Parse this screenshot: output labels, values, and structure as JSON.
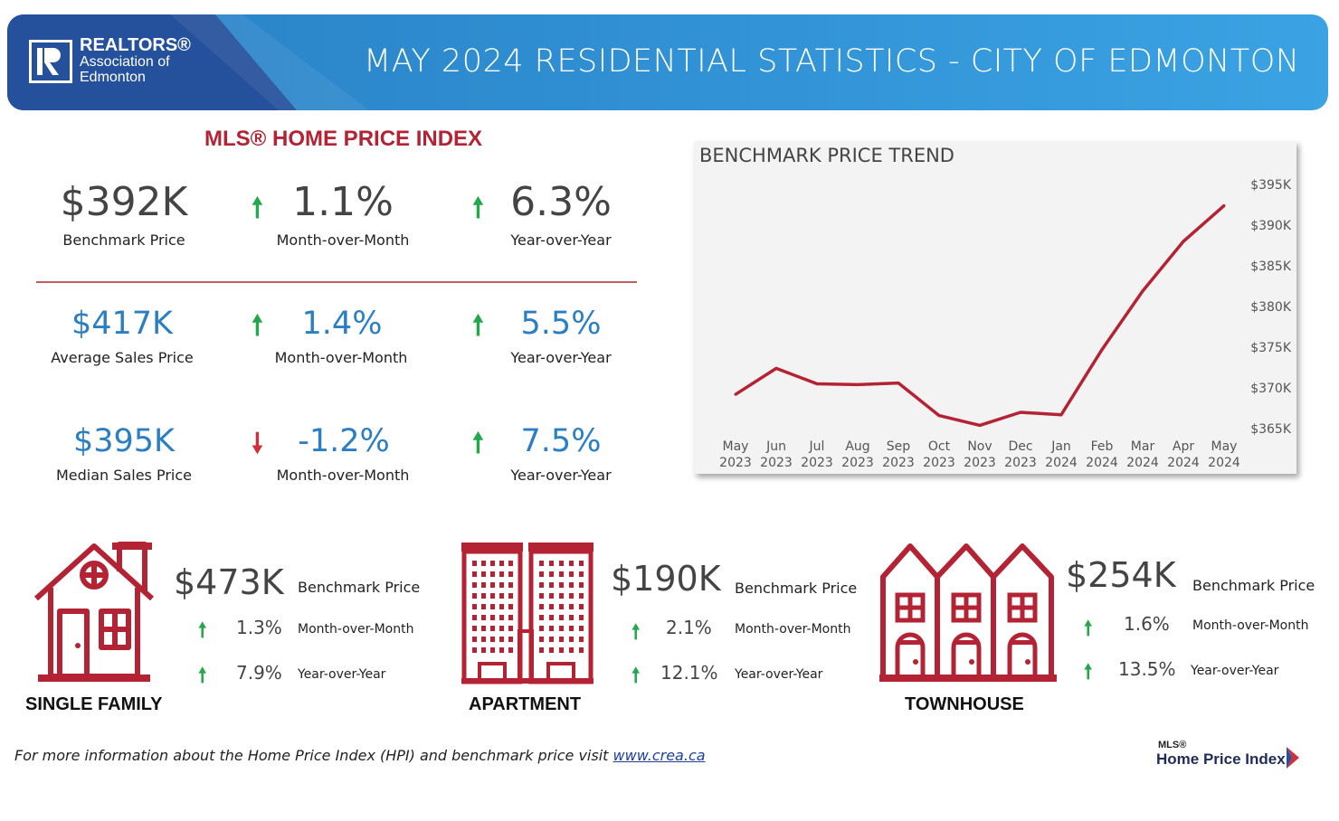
{
  "header": {
    "org_line1": "REALTORS®",
    "org_line2": "Association of",
    "org_line3": "Edmonton",
    "title": "MAY 2024 RESIDENTIAL STATISTICS - CITY OF EDMONTON"
  },
  "hpi": {
    "title": "MLS® HOME PRICE INDEX",
    "rows": [
      {
        "value": "$392K",
        "value_label": "Benchmark Price",
        "mom": "1.1%",
        "mom_label": "Month-over-Month",
        "mom_dir": "up",
        "yoy": "6.3%",
        "yoy_label": "Year-over-Year",
        "yoy_dir": "up"
      },
      {
        "value": "$417K",
        "value_label": "Average Sales Price",
        "mom": "1.4%",
        "mom_label": "Month-over-Month",
        "mom_dir": "up",
        "yoy": "5.5%",
        "yoy_label": "Year-over-Year",
        "yoy_dir": "up"
      },
      {
        "value": "$395K",
        "value_label": "Median Sales Price",
        "mom": "-1.2%",
        "mom_label": "Month-over-Month",
        "mom_dir": "down",
        "yoy": "7.5%",
        "yoy_label": "Year-over-Year",
        "yoy_dir": "up"
      }
    ]
  },
  "colors": {
    "banner_blue": "#2f8fd2",
    "banner_dark": "#25509c",
    "accent_red": "#b42333",
    "value_blue": "#2a7fc4",
    "up_green": "#23a84b",
    "down_red": "#d1303a",
    "line_red": "#b42333"
  },
  "chart_data": {
    "type": "line",
    "title": "BENCHMARK PRICE TREND",
    "categories": [
      [
        "May",
        "2023"
      ],
      [
        "Jun",
        "2023"
      ],
      [
        "Jul",
        "2023"
      ],
      [
        "Aug",
        "2023"
      ],
      [
        "Sep",
        "2023"
      ],
      [
        "Oct",
        "2023"
      ],
      [
        "Nov",
        "2023"
      ],
      [
        "Dec",
        "2023"
      ],
      [
        "Jan",
        "2024"
      ],
      [
        "Feb",
        "2024"
      ],
      [
        "Mar",
        "2024"
      ],
      [
        "Apr",
        "2024"
      ],
      [
        "May",
        "2024"
      ]
    ],
    "series": [
      {
        "values": [
          369.2,
          372.4,
          370.5,
          370.4,
          370.6,
          366.6,
          365.4,
          367.0,
          366.7,
          374.7,
          381.9,
          388.0,
          392.4
        ]
      }
    ],
    "yticks": [
      "$395K",
      "$390K",
      "$385K",
      "$380K",
      "$375K",
      "$370K",
      "$365K"
    ],
    "ytick_values": [
      395,
      390,
      385,
      380,
      375,
      370,
      365
    ],
    "ylim": [
      365,
      395
    ],
    "grid": false,
    "legend": "none"
  },
  "property_types": [
    {
      "name": "SINGLE FAMILY",
      "icon": "house-icon",
      "price": "$473K",
      "price_label": "Benchmark Price",
      "mom": "1.3%",
      "mom_label": "Month-over-Month",
      "yoy": "7.9%",
      "yoy_label": "Year-over-Year"
    },
    {
      "name": "APARTMENT",
      "icon": "apartment-building-icon",
      "price": "$190K",
      "price_label": "Benchmark Price",
      "mom": "2.1%",
      "mom_label": "Month-over-Month",
      "yoy": "12.1%",
      "yoy_label": "Year-over-Year"
    },
    {
      "name": "TOWNHOUSE",
      "icon": "townhouse-icon",
      "price": "$254K",
      "price_label": "Benchmark Price",
      "mom": "1.6%",
      "mom_label": "Month-over-Month",
      "yoy": "13.5%",
      "yoy_label": "Year-over-Year"
    }
  ],
  "footer": {
    "text": "For more information about the Home Price Index (HPI) and benchmark price visit ",
    "link": "www.crea.ca",
    "mls_small": "MLS®",
    "mls_big": "Home Price Index"
  }
}
